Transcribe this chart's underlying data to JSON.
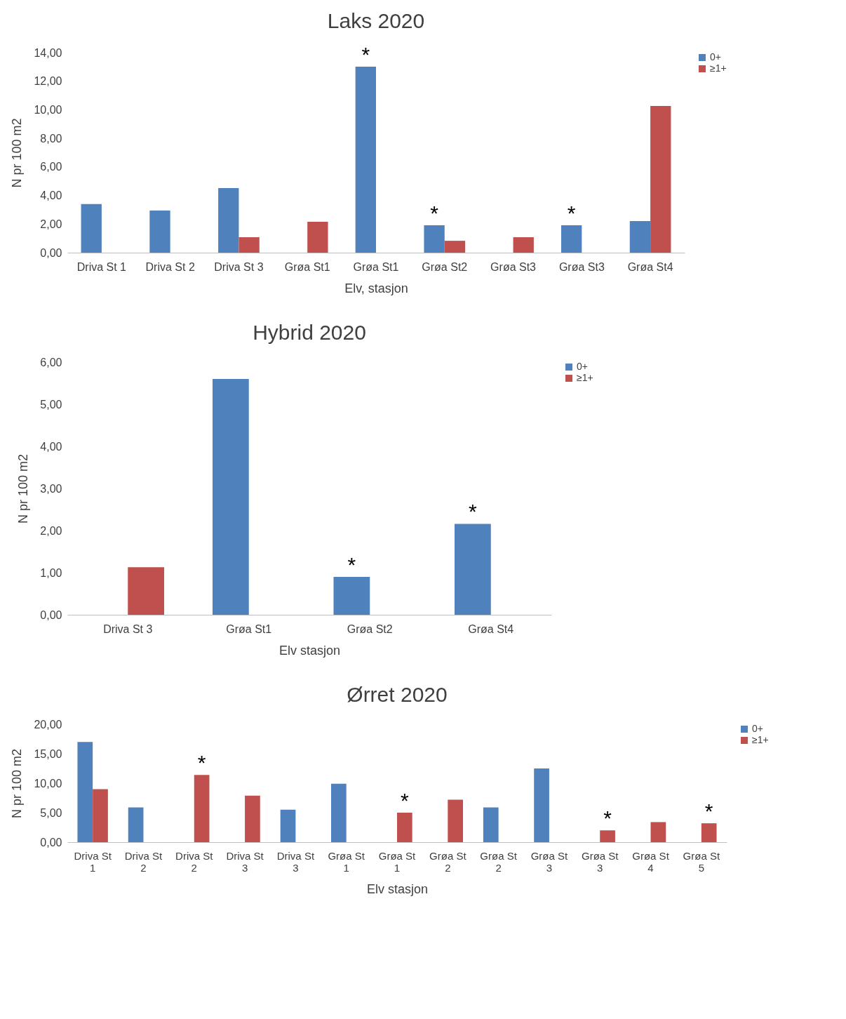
{
  "chart_data": [
    {
      "type": "bar",
      "title": "Laks 2020",
      "xlabel": "Elv, stasjon",
      "ylabel": "N pr 100 m2",
      "categories": [
        "Driva St 1",
        "Driva St 2",
        "Driva St 3",
        "Grøa St1",
        "Grøa St1",
        "Grøa St2",
        "Grøa St3",
        "Grøa St3",
        "Grøa St4"
      ],
      "series": [
        {
          "name": "0+",
          "color": "#4f81bd",
          "values": [
            3.4,
            2.95,
            4.52,
            null,
            13.02,
            1.92,
            null,
            1.92,
            2.21
          ],
          "value_labels": [
            null,
            null,
            null,
            null,
            "*",
            "*",
            null,
            "*",
            null
          ]
        },
        {
          "name": "≥1+",
          "color": "#c0504d",
          "values": [
            null,
            null,
            1.08,
            2.16,
            null,
            0.83,
            1.08,
            null,
            10.27
          ]
        }
      ],
      "ylim": [
        0,
        14
      ],
      "yticks": [
        {
          "value": 0,
          "label": "0,00"
        },
        {
          "value": 2,
          "label": "2,00"
        },
        {
          "value": 4,
          "label": "4,00"
        },
        {
          "value": 6,
          "label": "6,00"
        },
        {
          "value": 8,
          "label": "8,00"
        },
        {
          "value": 10,
          "label": "10,00"
        },
        {
          "value": 12,
          "label": "12,00"
        },
        {
          "value": 14,
          "label": "14,00"
        }
      ],
      "grid": false,
      "legend": "right"
    },
    {
      "type": "bar",
      "title": "Hybrid 2020",
      "xlabel": "Elv stasjon",
      "ylabel": "N pr 100 m2",
      "categories": [
        "Driva St 3",
        "Grøa St1",
        "Grøa St2",
        "Grøa St4"
      ],
      "series": [
        {
          "name": "0+",
          "color": "#4f81bd",
          "values": [
            null,
            5.6,
            0.9,
            2.16
          ],
          "value_labels": [
            null,
            null,
            "*",
            "*"
          ]
        },
        {
          "name": "≥1+",
          "color": "#c0504d",
          "values": [
            1.13,
            null,
            null,
            null
          ]
        }
      ],
      "ylim": [
        0,
        6
      ],
      "yticks": [
        {
          "value": 0,
          "label": "0,00"
        },
        {
          "value": 1,
          "label": "1,00"
        },
        {
          "value": 2,
          "label": "2,00"
        },
        {
          "value": 3,
          "label": "3,00"
        },
        {
          "value": 4,
          "label": "4,00"
        },
        {
          "value": 5,
          "label": "5,00"
        },
        {
          "value": 6,
          "label": "6,00"
        }
      ],
      "grid": false,
      "legend": "right"
    },
    {
      "type": "bar",
      "title": "Ørret 2020",
      "xlabel": "Elv stasjon",
      "ylabel": "N pr 100 m2",
      "categories": [
        "Driva St 1",
        "Driva St 2",
        "Driva St 2",
        "Driva St 3",
        "Driva St 3",
        "Grøa St 1",
        "Grøa St 1",
        "Grøa St 2",
        "Grøa St 2",
        "Grøa St 3",
        "Grøa St 3",
        "Grøa St 4",
        "Grøa St 5"
      ],
      "series": [
        {
          "name": "0+",
          "color": "#4f81bd",
          "values": [
            17.0,
            5.9,
            null,
            null,
            5.5,
            9.9,
            null,
            null,
            5.9,
            12.5,
            null,
            null,
            null
          ]
        },
        {
          "name": "≥1+",
          "color": "#c0504d",
          "values": [
            9.0,
            null,
            11.4,
            7.9,
            null,
            null,
            5.0,
            7.2,
            null,
            null,
            2.0,
            3.4,
            3.2
          ],
          "value_labels": [
            null,
            null,
            "*",
            null,
            null,
            null,
            "*",
            null,
            null,
            null,
            "*",
            null,
            "*"
          ]
        }
      ],
      "ylim": [
        0,
        20
      ],
      "yticks": [
        {
          "value": 0,
          "label": "0,00"
        },
        {
          "value": 5,
          "label": "5,00"
        },
        {
          "value": 10,
          "label": "10,00"
        },
        {
          "value": 15,
          "label": "15,00"
        },
        {
          "value": 20,
          "label": "20,00"
        }
      ],
      "grid": false,
      "legend": "right"
    }
  ]
}
